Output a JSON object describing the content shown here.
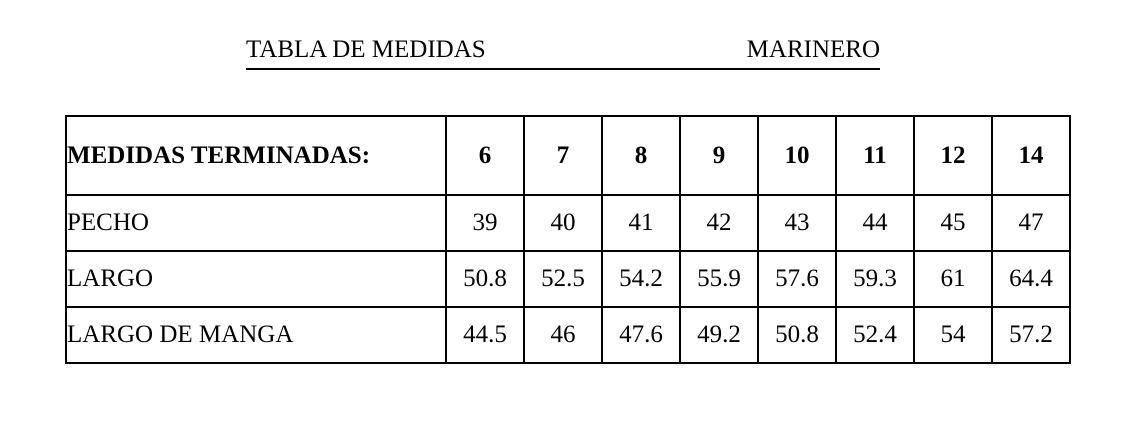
{
  "page": {
    "background": "#ffffff",
    "text_color": "#000000",
    "border_color": "#000000"
  },
  "header": {
    "title": "TABLA DE MEDIDAS",
    "garment": "MARINERO"
  },
  "table": {
    "header_label": "MEDIDAS TERMINADAS:",
    "sizes": [
      "6",
      "7",
      "8",
      "9",
      "10",
      "11",
      "12",
      "14"
    ],
    "rows": [
      {
        "label": "PECHO",
        "values": [
          "39",
          "40",
          "41",
          "42",
          "43",
          "44",
          "45",
          "47"
        ]
      },
      {
        "label": "LARGO",
        "values": [
          "50.8",
          "52.5",
          "54.2",
          "55.9",
          "57.6",
          "59.3",
          "61",
          "64.4"
        ]
      },
      {
        "label": "LARGO DE MANGA",
        "values": [
          "44.5",
          "46",
          "47.6",
          "49.2",
          "50.8",
          "52.4",
          "54",
          "57.2"
        ]
      }
    ]
  }
}
